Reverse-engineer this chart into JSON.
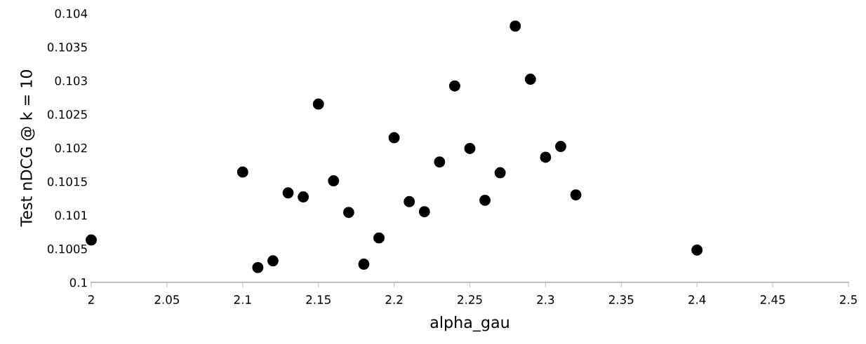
{
  "chart_data": {
    "type": "scatter",
    "xlabel": "alpha_gau",
    "ylabel": "Test nDCG @ k = 10",
    "x": [
      2.0,
      2.1,
      2.11,
      2.12,
      2.13,
      2.14,
      2.15,
      2.16,
      2.17,
      2.18,
      2.19,
      2.2,
      2.21,
      2.22,
      2.23,
      2.24,
      2.25,
      2.26,
      2.27,
      2.28,
      2.29,
      2.3,
      2.31,
      2.32,
      2.4
    ],
    "series": [
      {
        "color": "#000000",
        "values": [
          0.10063,
          0.10164,
          0.10022,
          0.10032,
          0.10133,
          0.10127,
          0.10265,
          0.10151,
          0.10104,
          0.10027,
          0.10066,
          0.10215,
          0.1012,
          0.10105,
          0.10179,
          0.10292,
          0.10199,
          0.10122,
          0.10163,
          0.10381,
          0.10302,
          0.10186,
          0.10202,
          0.1013,
          0.10048
        ]
      }
    ],
    "xlim": [
      2,
      2.5
    ],
    "xticks": [
      {
        "value": 2,
        "label": "2"
      },
      2.05,
      2.1,
      2.15,
      2.2,
      2.25,
      2.3,
      2.35,
      2.4,
      2.45,
      {
        "value": 2.5,
        "label": "2.5"
      }
    ],
    "ylim": [
      0.1,
      0.104
    ],
    "yticks": [
      {
        "value": 0.1,
        "label": "0.1"
      },
      0.1005,
      0.101,
      0.1015,
      0.102,
      0.1025,
      0.103,
      0.1035,
      0.104
    ],
    "marker": "circle",
    "grid": false,
    "legend": false
  }
}
